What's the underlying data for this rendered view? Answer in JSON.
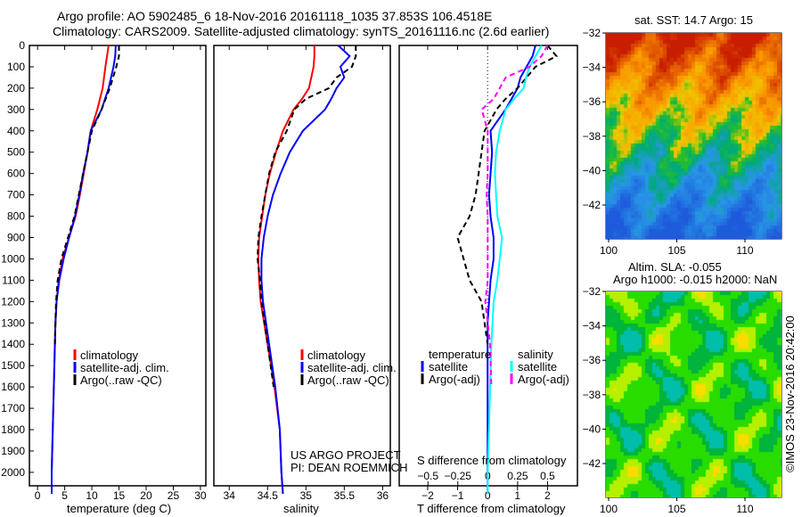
{
  "title": {
    "line1": "Argo profile: AO 5902485_6 18-Nov-2016 20161118_1035 37.853S 106.4518E",
    "line2": "Climatology: CARS2009. Satellite-adjusted climatology: synTS_20161116.nc (2.6d earlier)"
  },
  "colors": {
    "climatology": "#ff0000",
    "satellite": "#0000ff",
    "argo": "#000000",
    "s_satellite": "#00ffff",
    "s_argo": "#ff00ff"
  },
  "chart_data": [
    {
      "type": "line",
      "name": "temperature",
      "xlabel": "temperature (deg C)",
      "ylabel": "depth",
      "xlim": [
        -1.5,
        31
      ],
      "ylim": [
        0,
        2150
      ],
      "xticks": [
        0,
        5,
        10,
        15,
        20,
        25,
        30
      ],
      "yticks": [
        0,
        100,
        200,
        300,
        400,
        500,
        600,
        700,
        800,
        900,
        1000,
        1100,
        1200,
        1300,
        1400,
        1500,
        1600,
        1700,
        1800,
        1900,
        2000
      ],
      "depth": [
        0,
        50,
        100,
        200,
        300,
        400,
        500,
        600,
        700,
        800,
        900,
        1000,
        1100,
        1200,
        1300,
        1400,
        1500,
        1600,
        1700,
        1800,
        1900,
        2000,
        2100
      ],
      "legend": [
        "climatology",
        "satellite-adj. clim.",
        "Argo(..raw -QC)"
      ],
      "series": [
        {
          "name": "climatology",
          "style": "red",
          "values": [
            13.1,
            12.8,
            12.5,
            12,
            11,
            9.8,
            9.2,
            8.5,
            7.8,
            7,
            5.8,
            4.6,
            3.9,
            3.5,
            3.3,
            3.2,
            3.1,
            3.0,
            2.9,
            2.8,
            2.7,
            2.6,
            2.6
          ]
        },
        {
          "name": "satellite-adj. clim.",
          "style": "blue",
          "values": [
            14.4,
            14.3,
            14,
            13.1,
            11.8,
            9.8,
            9.2,
            8.4,
            7.7,
            6.9,
            5.8,
            4.8,
            4,
            3.5,
            3.3,
            3.2,
            3.1,
            3.0,
            2.9,
            2.8,
            2.7,
            2.6,
            2.6
          ]
        },
        {
          "name": "Argo(..raw -QC)",
          "style": "black-dash",
          "values": [
            15,
            15,
            14.5,
            13.3,
            11.8,
            10,
            9.2,
            8.4,
            7.6,
            6.8,
            5.6,
            4.4,
            3.7,
            3.4,
            3.3,
            3.2
          ]
        }
      ]
    },
    {
      "type": "line",
      "name": "salinity",
      "xlabel": "salinity",
      "xlim": [
        33.8,
        36.1
      ],
      "ylim": [
        0,
        2150
      ],
      "xticks": [
        34,
        34.5,
        35,
        35.5,
        36
      ],
      "depth": [
        0,
        50,
        100,
        150,
        200,
        250,
        300,
        400,
        500,
        600,
        700,
        800,
        900,
        1000,
        1100,
        1200,
        1400,
        1600,
        1800,
        2000,
        2100
      ],
      "legend": [
        "climatology",
        "satellite-adj. clim.",
        "Argo(..raw -QC)"
      ],
      "annotation": [
        "US ARGO PROJECT",
        "PI: DEAN ROEMMICH"
      ],
      "series": [
        {
          "name": "climatology",
          "style": "red",
          "values": [
            35.11,
            35.11,
            35.1,
            35.07,
            35.04,
            34.95,
            34.84,
            34.7,
            34.61,
            34.53,
            34.47,
            34.43,
            34.39,
            34.38,
            34.39,
            34.41,
            34.5,
            34.59,
            34.66,
            34.68,
            34.7
          ]
        },
        {
          "name": "satellite-adj. clim.",
          "style": "blue",
          "values": [
            35.42,
            35.57,
            35.45,
            35.5,
            35.4,
            35.33,
            35.25,
            34.96,
            34.79,
            34.67,
            34.57,
            34.5,
            34.45,
            34.42,
            34.42,
            34.44,
            34.52,
            34.6,
            34.66,
            34.68,
            34.7
          ]
        },
        {
          "name": "Argo(..raw -QC)",
          "style": "black-dash",
          "values": [
            35.65,
            35.65,
            35.6,
            35.4,
            35.3,
            35.0,
            34.85,
            34.75,
            34.6,
            34.52,
            34.47,
            34.42,
            34.38,
            34.37,
            34.4,
            34.42,
            34.5,
            34.58
          ]
        }
      ]
    },
    {
      "type": "line",
      "name": "difference",
      "xlabel": "T difference from climatology",
      "x2label": "S difference from climatology",
      "xlim": [
        -2.95,
        3.0
      ],
      "x2lim": [
        -0.74,
        0.75
      ],
      "ylim": [
        0,
        2150
      ],
      "xticks": [
        -2,
        -1,
        0,
        1,
        2
      ],
      "x2ticks": [
        -0.5,
        -0.25,
        0,
        0.25,
        0.5
      ],
      "depth": [
        0,
        50,
        100,
        150,
        200,
        250,
        300,
        400,
        500,
        600,
        700,
        800,
        900,
        1000,
        1100,
        1200,
        1300,
        1400,
        1600,
        1800,
        2000,
        2100
      ],
      "legend_t": {
        "title": "temperature",
        "items": [
          "satellite",
          "Argo(-adj)"
        ]
      },
      "legend_s": {
        "title": "salinity",
        "items": [
          "satellite",
          "Argo(-adj)"
        ]
      },
      "series": [
        {
          "name": "T satellite",
          "axis": "T",
          "style": "blue",
          "values": [
            1.6,
            1.5,
            1.3,
            1.1,
            1.0,
            0.8,
            0.6,
            0.1,
            0.15,
            0.1,
            0.05,
            0.1,
            0.2,
            0.2,
            0.1,
            0.05,
            0,
            0,
            0,
            0,
            0,
            0
          ]
        },
        {
          "name": "T Argo(-adj)",
          "axis": "T",
          "style": "black-dash",
          "values": [
            2.0,
            2.3,
            1.6,
            1.3,
            1.0,
            0.6,
            0.3,
            -0.1,
            -0.2,
            -0.3,
            -0.4,
            -0.6,
            -1.0,
            -0.8,
            -0.6,
            -0.2,
            -0.1,
            0.0
          ]
        },
        {
          "name": "S satellite",
          "axis": "S",
          "style": "cyan",
          "values": [
            0.45,
            0.4,
            0.35,
            0.32,
            0.3,
            0.22,
            0.15,
            0.1,
            0.07,
            0.06,
            0.07,
            0.08,
            0.12,
            0.1,
            0.08,
            0.05,
            0.04,
            0.03,
            0.02,
            0.01,
            0,
            0
          ]
        },
        {
          "name": "S Argo(-adj)",
          "axis": "S",
          "style": "magenta-dash",
          "values": [
            0.5,
            0.45,
            0.35,
            0.15,
            0.1,
            0.05,
            -0.05,
            0.0,
            0.0,
            0.0,
            -0.01,
            0.0,
            0.0,
            0.0,
            0.0,
            -0.02,
            0,
            0.02,
            0.03
          ]
        }
      ]
    }
  ],
  "map_sst": {
    "title": "sat. SST: 14.7 Argo: 15",
    "xticks": [
      100,
      105,
      110
    ],
    "yticks": [
      -32,
      -34,
      -36,
      -38,
      -40,
      -42
    ],
    "argo_lon": 106.45,
    "argo_lat": -37.85
  },
  "map_sla": {
    "title1": "Altim. SLA: -0.055",
    "title2": "Argo h1000: -0.015 h2000: NaN",
    "xticks": [
      100,
      105,
      110
    ],
    "yticks": [
      -32,
      -34,
      -36,
      -38,
      -40,
      -42
    ],
    "argo_lon": 106.45,
    "argo_lat": -37.85
  },
  "credit": "©IMOS 23-Nov-2016 20:42:00"
}
